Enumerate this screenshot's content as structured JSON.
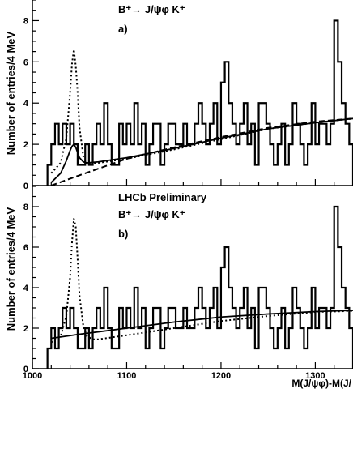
{
  "chart_data": [
    {
      "type": "line",
      "panel_label": "a)",
      "decay_label": "B⁺→ J/ψφ K⁺",
      "header": "",
      "ylabel": "Number of entries/4 MeV",
      "xlabel": "",
      "xlim": [
        1000,
        1340
      ],
      "ylim": [
        0,
        9
      ],
      "y_ticks": [
        0,
        2,
        4,
        6,
        8
      ],
      "x_ticks": [],
      "bin_width": 4,
      "histogram": {
        "name": "data",
        "x": [
          1016,
          1020,
          1024,
          1028,
          1032,
          1036,
          1040,
          1044,
          1048,
          1052,
          1056,
          1060,
          1064,
          1068,
          1072,
          1076,
          1080,
          1084,
          1088,
          1092,
          1096,
          1100,
          1104,
          1108,
          1112,
          1116,
          1120,
          1124,
          1128,
          1132,
          1136,
          1140,
          1144,
          1148,
          1152,
          1156,
          1160,
          1164,
          1168,
          1172,
          1176,
          1180,
          1184,
          1188,
          1192,
          1196,
          1200,
          1204,
          1208,
          1212,
          1216,
          1220,
          1224,
          1228,
          1232,
          1236,
          1240,
          1244,
          1248,
          1252,
          1256,
          1260,
          1264,
          1268,
          1272,
          1276,
          1280,
          1284,
          1288,
          1292,
          1296,
          1300,
          1304,
          1308,
          1312,
          1316,
          1320,
          1324,
          1328,
          1332,
          1336
        ],
        "y": [
          1,
          2,
          3,
          2,
          3,
          2,
          3,
          2,
          1,
          1,
          2,
          1,
          2,
          3,
          2,
          4,
          2,
          1,
          1,
          3,
          2,
          3,
          2,
          4,
          2,
          3,
          1,
          2,
          3,
          3,
          1,
          2,
          3,
          3,
          2,
          2,
          3,
          2,
          2,
          3,
          4,
          3,
          2,
          3,
          4,
          2,
          5,
          6,
          4,
          3,
          2,
          3,
          4,
          2,
          3,
          1,
          4,
          4,
          3,
          2,
          1,
          2,
          3,
          1,
          2,
          4,
          3,
          2,
          1,
          2,
          4,
          2,
          3,
          3,
          2,
          3,
          8,
          6,
          4,
          3,
          2
        ]
      },
      "curves": [
        {
          "name": "",
          "style": "dotted",
          "x": [
            1020,
            1030,
            1036,
            1040,
            1042,
            1044,
            1046,
            1048,
            1050,
            1054,
            1058,
            1070,
            1100,
            1150,
            1200,
            1250,
            1300,
            1340
          ],
          "y": [
            0.6,
            1.1,
            2.3,
            4.5,
            5.9,
            6.6,
            5.8,
            4.5,
            2.8,
            1.4,
            1.05,
            1.1,
            1.3,
            1.75,
            2.25,
            2.75,
            3.05,
            3.25
          ]
        },
        {
          "name": "",
          "style": "solid",
          "x": [
            1020,
            1030,
            1036,
            1040,
            1042,
            1044,
            1046,
            1048,
            1050,
            1054,
            1058,
            1070,
            1100,
            1150,
            1200,
            1250,
            1300,
            1340
          ],
          "y": [
            0.15,
            0.6,
            1.2,
            1.7,
            1.9,
            2.0,
            1.85,
            1.6,
            1.35,
            1.15,
            1.1,
            1.15,
            1.35,
            1.8,
            2.3,
            2.75,
            3.05,
            3.25
          ]
        },
        {
          "name": "",
          "style": "dashed",
          "x": [
            1020,
            1050,
            1100,
            1150,
            1200,
            1250,
            1300,
            1340
          ],
          "y": [
            0.0,
            0.5,
            1.3,
            1.85,
            2.35,
            2.8,
            3.1,
            3.25
          ]
        }
      ]
    },
    {
      "type": "line",
      "panel_label": "b)",
      "decay_label": "B⁺→ J/ψφ K⁺",
      "header": "LHCb Preliminary",
      "ylabel": "Number of entries/4 MeV",
      "xlabel": "M(J/ψφ)-M(J/",
      "xlim": [
        1000,
        1340
      ],
      "ylim": [
        0,
        9
      ],
      "y_ticks": [
        0,
        2,
        4,
        6,
        8
      ],
      "x_ticks": [
        1000,
        1100,
        1200,
        1300
      ],
      "bin_width": 4,
      "histogram": {
        "name": "data",
        "x": [
          1016,
          1020,
          1024,
          1028,
          1032,
          1036,
          1040,
          1044,
          1048,
          1052,
          1056,
          1060,
          1064,
          1068,
          1072,
          1076,
          1080,
          1084,
          1088,
          1092,
          1096,
          1100,
          1104,
          1108,
          1112,
          1116,
          1120,
          1124,
          1128,
          1132,
          1136,
          1140,
          1144,
          1148,
          1152,
          1156,
          1160,
          1164,
          1168,
          1172,
          1176,
          1180,
          1184,
          1188,
          1192,
          1196,
          1200,
          1204,
          1208,
          1212,
          1216,
          1220,
          1224,
          1228,
          1232,
          1236,
          1240,
          1244,
          1248,
          1252,
          1256,
          1260,
          1264,
          1268,
          1272,
          1276,
          1280,
          1284,
          1288,
          1292,
          1296,
          1300,
          1304,
          1308,
          1312,
          1316,
          1320,
          1324,
          1328,
          1332,
          1336
        ],
        "y": [
          1,
          2,
          1,
          2,
          3,
          2,
          3,
          2,
          1,
          1,
          2,
          1,
          2,
          3,
          2,
          4,
          2,
          1,
          1,
          3,
          2,
          3,
          2,
          4,
          2,
          3,
          1,
          2,
          3,
          3,
          1,
          2,
          3,
          3,
          2,
          2,
          3,
          2,
          2,
          3,
          4,
          3,
          2,
          3,
          4,
          2,
          5,
          6,
          4,
          3,
          2,
          3,
          4,
          2,
          3,
          1,
          4,
          4,
          3,
          2,
          1,
          2,
          3,
          1,
          2,
          4,
          3,
          2,
          1,
          2,
          4,
          2,
          3,
          3,
          2,
          3,
          8,
          6,
          4,
          3,
          2
        ]
      },
      "curves": [
        {
          "name": "",
          "style": "dotted",
          "x": [
            1020,
            1030,
            1036,
            1040,
            1042,
            1044,
            1046,
            1048,
            1050,
            1054,
            1058,
            1064,
            1070,
            1100,
            1150,
            1200,
            1250,
            1300,
            1340
          ],
          "y": [
            1.3,
            1.6,
            2.6,
            4.5,
            6.2,
            7.4,
            7.0,
            5.4,
            3.6,
            2.1,
            1.6,
            1.45,
            1.45,
            1.65,
            2.0,
            2.35,
            2.6,
            2.8,
            2.85
          ]
        },
        {
          "name": "",
          "style": "solid",
          "x": [
            1020,
            1050,
            1100,
            1150,
            1200,
            1250,
            1300,
            1340
          ],
          "y": [
            1.5,
            1.7,
            2.0,
            2.3,
            2.55,
            2.7,
            2.82,
            2.88
          ]
        }
      ]
    }
  ]
}
